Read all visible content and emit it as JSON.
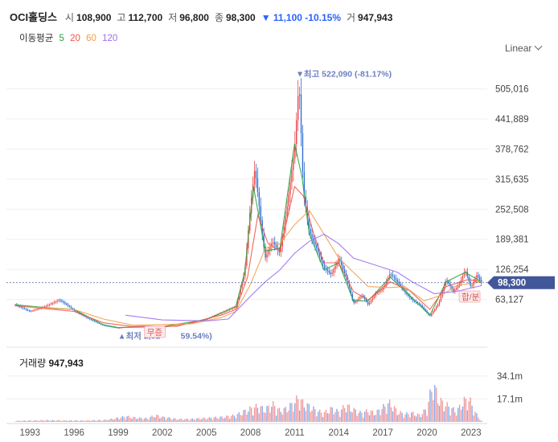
{
  "header": {
    "name": "OCI홀딩스",
    "open_label": "시",
    "open": "108,900",
    "high_label": "고",
    "high": "112,700",
    "low_label": "저",
    "low": "96,800",
    "close_label": "종",
    "close": "98,300",
    "change": "▼ 11,100 -10.15%",
    "vol_label": "거",
    "volume": "947,943",
    "change_color": "#2962ff"
  },
  "moving_averages": {
    "label": "이동평균",
    "periods": [
      {
        "period": "5",
        "color": "#26a641"
      },
      {
        "period": "20",
        "color": "#f0564a"
      },
      {
        "period": "60",
        "color": "#f29d49"
      },
      {
        "period": "120",
        "color": "#9b6ff0"
      }
    ]
  },
  "scale_mode": "Linear",
  "chart_data": {
    "type": "candlestick",
    "scale": "linear",
    "x_ticks": [
      "1993",
      "1996",
      "1999",
      "2002",
      "2005",
      "2008",
      "2011",
      "2014",
      "2017",
      "2020",
      "2023"
    ],
    "y_ticks": [
      "505,016",
      "441,889",
      "378,762",
      "315,635",
      "252,508",
      "189,381",
      "126,254",
      "63,127"
    ],
    "ylim": [
      0,
      560000
    ],
    "current_price_label": "98,300",
    "current_price": 98300,
    "max_label": "최고 522,090 (-81.17%)",
    "max": {
      "year": 2011.3,
      "value": 522090
    },
    "min_label": "최저 2,92",
    "min_label_tail": "59.54%)",
    "min": {
      "year": 1999.2,
      "value": 2920
    },
    "events": [
      {
        "label": "무증",
        "year": 2001.5
      },
      {
        "label": "합/분",
        "year": 2022.9
      }
    ],
    "price_series": [
      [
        1992,
        52000
      ],
      [
        1993,
        38000
      ],
      [
        1994,
        48000
      ],
      [
        1995,
        62000
      ],
      [
        1995.5,
        52000
      ],
      [
        1996,
        40000
      ],
      [
        1997,
        22000
      ],
      [
        1998,
        8000
      ],
      [
        1999,
        2920
      ],
      [
        2000,
        7000
      ],
      [
        2001,
        8000
      ],
      [
        2002,
        5000
      ],
      [
        2003,
        9000
      ],
      [
        2004,
        14000
      ],
      [
        2005,
        22000
      ],
      [
        2006,
        35000
      ],
      [
        2007,
        48000
      ],
      [
        2007.6,
        120000
      ],
      [
        2008,
        260000
      ],
      [
        2008.3,
        340000
      ],
      [
        2008.8,
        200000
      ],
      [
        2009,
        150000
      ],
      [
        2009.5,
        185000
      ],
      [
        2010,
        160000
      ],
      [
        2010.5,
        260000
      ],
      [
        2011,
        380000
      ],
      [
        2011.3,
        522090
      ],
      [
        2011.6,
        290000
      ],
      [
        2012,
        205000
      ],
      [
        2012.5,
        170000
      ],
      [
        2013,
        130000
      ],
      [
        2013.5,
        115000
      ],
      [
        2014,
        150000
      ],
      [
        2014.5,
        110000
      ],
      [
        2015,
        55000
      ],
      [
        2015.6,
        72000
      ],
      [
        2016,
        52000
      ],
      [
        2016.5,
        75000
      ],
      [
        2017,
        85000
      ],
      [
        2017.5,
        118000
      ],
      [
        2018,
        100000
      ],
      [
        2018.6,
        75000
      ],
      [
        2019,
        62000
      ],
      [
        2019.6,
        50000
      ],
      [
        2020.2,
        28000
      ],
      [
        2020.8,
        55000
      ],
      [
        2021.3,
        105000
      ],
      [
        2021.8,
        80000
      ],
      [
        2022.2,
        95000
      ],
      [
        2022.6,
        125000
      ],
      [
        2023,
        88000
      ],
      [
        2023.4,
        115000
      ],
      [
        2023.7,
        98300
      ]
    ],
    "moving_average_series": {
      "ma5": [
        [
          1992,
          52000
        ],
        [
          1994,
          46000
        ],
        [
          1996,
          42000
        ],
        [
          1998,
          10000
        ],
        [
          1999,
          4000
        ],
        [
          2002,
          6000
        ],
        [
          2005,
          21000
        ],
        [
          2007,
          48000
        ],
        [
          2007.6,
          120000
        ],
        [
          2008.2,
          300000
        ],
        [
          2009,
          165000
        ],
        [
          2010,
          170000
        ],
        [
          2011,
          390000
        ],
        [
          2011.5,
          320000
        ],
        [
          2012,
          200000
        ],
        [
          2013,
          125000
        ],
        [
          2014,
          140000
        ],
        [
          2015,
          60000
        ],
        [
          2016,
          60000
        ],
        [
          2017.5,
          110000
        ],
        [
          2018.6,
          78000
        ],
        [
          2020.2,
          30000
        ],
        [
          2021.3,
          100000
        ],
        [
          2022.6,
          120000
        ],
        [
          2023.7,
          100000
        ]
      ],
      "ma20": [
        [
          1992,
          50000
        ],
        [
          1994,
          44000
        ],
        [
          1996,
          38000
        ],
        [
          1998,
          14000
        ],
        [
          2000,
          6000
        ],
        [
          2003,
          7000
        ],
        [
          2006,
          30000
        ],
        [
          2007,
          42000
        ],
        [
          2007.8,
          110000
        ],
        [
          2008.5,
          240000
        ],
        [
          2009.2,
          180000
        ],
        [
          2010,
          165000
        ],
        [
          2011,
          300000
        ],
        [
          2011.6,
          280000
        ],
        [
          2012.3,
          200000
        ],
        [
          2013,
          140000
        ],
        [
          2014,
          140000
        ],
        [
          2015,
          80000
        ],
        [
          2016,
          62000
        ],
        [
          2017.5,
          100000
        ],
        [
          2018.8,
          82000
        ],
        [
          2020.2,
          42000
        ],
        [
          2021.3,
          90000
        ],
        [
          2022.8,
          105000
        ],
        [
          2023.7,
          100000
        ]
      ],
      "ma60": [
        [
          1993,
          47000
        ],
        [
          1996,
          42000
        ],
        [
          1998,
          22000
        ],
        [
          2000,
          9000
        ],
        [
          2004,
          12000
        ],
        [
          2006,
          25000
        ],
        [
          2007,
          38000
        ],
        [
          2008,
          95000
        ],
        [
          2009,
          170000
        ],
        [
          2010,
          180000
        ],
        [
          2011,
          220000
        ],
        [
          2012,
          250000
        ],
        [
          2013,
          200000
        ],
        [
          2014,
          150000
        ],
        [
          2015,
          120000
        ],
        [
          2016,
          90000
        ],
        [
          2017.5,
          88000
        ],
        [
          2018.5,
          90000
        ],
        [
          2019.8,
          60000
        ],
        [
          2021,
          72000
        ],
        [
          2022,
          92000
        ],
        [
          2023.7,
          100000
        ]
      ],
      "ma120": [
        [
          1999.5,
          30000
        ],
        [
          2002,
          20000
        ],
        [
          2005,
          18000
        ],
        [
          2006.5,
          22000
        ],
        [
          2008,
          70000
        ],
        [
          2009,
          100000
        ],
        [
          2010,
          125000
        ],
        [
          2011,
          160000
        ],
        [
          2012,
          185000
        ],
        [
          2013,
          200000
        ],
        [
          2014,
          180000
        ],
        [
          2015,
          150000
        ],
        [
          2016,
          140000
        ],
        [
          2017,
          130000
        ],
        [
          2018,
          120000
        ],
        [
          2019,
          100000
        ],
        [
          2020.5,
          75000
        ],
        [
          2022,
          80000
        ],
        [
          2023.7,
          92000
        ]
      ]
    },
    "volume": {
      "title": "거래량",
      "last": "947,943",
      "y_ticks": [
        "34.1m",
        "17.1m"
      ],
      "ylim": [
        0,
        40000000
      ],
      "bars": [
        [
          1992.0,
          900000
        ],
        [
          1993.0,
          1200000
        ],
        [
          1994.0,
          1500000
        ],
        [
          1995.0,
          1400000
        ],
        [
          1996.0,
          1200000
        ],
        [
          1997.0,
          1300000
        ],
        [
          1998.0,
          1600000
        ],
        [
          1999.0,
          3500000
        ],
        [
          1999.5,
          5000000
        ],
        [
          2000.0,
          4000000
        ],
        [
          2001.0,
          3000000
        ],
        [
          2001.5,
          6000000
        ],
        [
          2002.0,
          4500000
        ],
        [
          2003.0,
          2500000
        ],
        [
          2004.0,
          2600000
        ],
        [
          2005.0,
          3500000
        ],
        [
          2006.0,
          4200000
        ],
        [
          2007.0,
          6000000
        ],
        [
          2007.5,
          9000000
        ],
        [
          2008.0,
          12000000
        ],
        [
          2008.5,
          14000000
        ],
        [
          2009.0,
          11000000
        ],
        [
          2009.5,
          16000000
        ],
        [
          2010.0,
          10000000
        ],
        [
          2010.5,
          12000000
        ],
        [
          2011.0,
          18000000
        ],
        [
          2011.3,
          22000000
        ],
        [
          2011.6,
          16000000
        ],
        [
          2012.0,
          14000000
        ],
        [
          2012.5,
          10000000
        ],
        [
          2013.0,
          8000000
        ],
        [
          2013.5,
          12000000
        ],
        [
          2014.0,
          9000000
        ],
        [
          2014.5,
          15000000
        ],
        [
          2015.0,
          11000000
        ],
        [
          2015.5,
          8000000
        ],
        [
          2016.0,
          10000000
        ],
        [
          2016.5,
          8000000
        ],
        [
          2017.0,
          13000000
        ],
        [
          2017.5,
          17000000
        ],
        [
          2018.0,
          9000000
        ],
        [
          2018.5,
          7000000
        ],
        [
          2019.0,
          8000000
        ],
        [
          2019.5,
          6000000
        ],
        [
          2020.0,
          12000000
        ],
        [
          2020.4,
          35000000
        ],
        [
          2020.8,
          20000000
        ],
        [
          2021.2,
          16000000
        ],
        [
          2021.6,
          13000000
        ],
        [
          2022.0,
          9000000
        ],
        [
          2022.5,
          19000000
        ],
        [
          2022.9,
          20000000
        ],
        [
          2023.3,
          8000000
        ],
        [
          2023.7,
          947943
        ]
      ]
    }
  }
}
